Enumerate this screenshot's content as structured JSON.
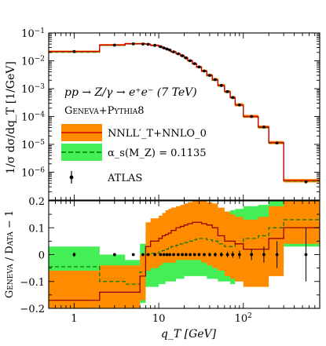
{
  "chart_data": [
    {
      "type": "line",
      "panel": "top",
      "title": "",
      "xlabel": "",
      "ylabel": "1/σ dσ/dq_T [1/GeV]",
      "xscale": "log",
      "yscale": "log",
      "xlim": [
        0.5,
        800
      ],
      "ylim": [
        1e-07,
        0.1
      ],
      "yticks": [
        {
          "v": 1e-06,
          "mant": "10",
          "exp": "−6"
        },
        {
          "v": 1e-05,
          "mant": "10",
          "exp": "−5"
        },
        {
          "v": 0.0001,
          "mant": "10",
          "exp": "−4"
        },
        {
          "v": 0.001,
          "mant": "10",
          "exp": "−3"
        },
        {
          "v": 0.01,
          "mant": "10",
          "exp": "−2"
        },
        {
          "v": 0.1,
          "mant": "10",
          "exp": "−1"
        }
      ],
      "annotations": {
        "process": "pp → Z/γ → e⁺e⁻ (7 TeV)",
        "generator": "Geneva+Pythia8"
      },
      "bin_edges": [
        0.5,
        2,
        4,
        6,
        7,
        8,
        10,
        11,
        12,
        13,
        14,
        16,
        18,
        20,
        22,
        25,
        28,
        32,
        37,
        43,
        50,
        60,
        70,
        80,
        100,
        150,
        200,
        300,
        800
      ],
      "series": [
        {
          "name": "NNLL′_T+NNLO_0",
          "color": "#cc0000",
          "band_color": "#ff8c00",
          "values": [
            0.0215,
            0.037,
            0.041,
            0.041,
            0.0395,
            0.036,
            0.0325,
            0.029,
            0.0265,
            0.0245,
            0.021,
            0.018,
            0.0153,
            0.0128,
            0.0101,
            0.0079,
            0.006,
            0.0043,
            0.003,
            0.0021,
            0.0013,
            0.00078,
            0.00048,
            0.00026,
            0.0001,
            4.2e-05,
            1.15e-05,
            5e-07
          ],
          "band_lo": [
            0.0195,
            0.034,
            0.0385,
            0.0385,
            0.037,
            0.0335,
            0.03,
            0.027,
            0.0245,
            0.0225,
            0.0193,
            0.0165,
            0.014,
            0.0117,
            0.0092,
            0.0072,
            0.0055,
            0.0039,
            0.0027,
            0.0019,
            0.00118,
            0.0007,
            0.00043,
            0.00023,
            8.9e-05,
            3.7e-05,
            1.02e-05,
            4.3e-07
          ],
          "band_hi": [
            0.0235,
            0.04,
            0.044,
            0.044,
            0.0425,
            0.0388,
            0.035,
            0.0312,
            0.0285,
            0.0265,
            0.0228,
            0.0196,
            0.0167,
            0.014,
            0.011,
            0.0087,
            0.0066,
            0.0048,
            0.0034,
            0.0024,
            0.00147,
            0.00088,
            0.00054,
            0.0003,
            0.000115,
            4.8e-05,
            1.32e-05,
            5.7e-07
          ]
        },
        {
          "name": "α_s(M_Z) = 0.1135",
          "color": "#00aa00",
          "band_color": "#44ee55",
          "values": [
            0.0205,
            0.036,
            0.0405,
            0.0405,
            0.039,
            0.0355,
            0.032,
            0.0287,
            0.0262,
            0.0242,
            0.0208,
            0.0178,
            0.0151,
            0.0127,
            0.01,
            0.0078,
            0.0059,
            0.0042,
            0.0029,
            0.002,
            0.00126,
            0.00075,
            0.00046,
            0.00025,
            9.7e-05,
            4e-05,
            1.1e-05,
            4.8e-07
          ]
        },
        {
          "name": "ATLAS",
          "color": "#000000",
          "x": [
            1,
            3,
            5,
            6.5,
            7.5,
            9,
            10.5,
            11.5,
            12.5,
            13.5,
            15,
            17,
            19,
            21,
            23.5,
            26.5,
            30,
            34.5,
            40,
            46.5,
            55,
            65,
            75,
            90,
            125,
            175,
            250,
            550
          ],
          "values": [
            0.0215,
            0.0365,
            0.0405,
            0.04,
            0.039,
            0.0358,
            0.0322,
            0.0289,
            0.0264,
            0.0244,
            0.0209,
            0.0179,
            0.0152,
            0.0127,
            0.0101,
            0.0079,
            0.006,
            0.0043,
            0.003,
            0.0021,
            0.0013,
            0.00078,
            0.00048,
            0.00026,
            0.0001,
            4.2e-05,
            1.12e-05,
            4.5e-07
          ]
        }
      ],
      "legend_position": "lower-left"
    },
    {
      "type": "line",
      "panel": "bottom",
      "title": "",
      "xlabel": "q_T [GeV]",
      "ylabel": "Geneva / Data − 1",
      "xscale": "log",
      "yscale": "linear",
      "xlim": [
        0.5,
        800
      ],
      "ylim": [
        -0.2,
        0.2
      ],
      "yticks": [
        {
          "v": -0.2,
          "label": "−0.2"
        },
        {
          "v": -0.1,
          "label": "−0.1"
        },
        {
          "v": 0,
          "label": "0"
        },
        {
          "v": 0.1,
          "label": "0.1"
        },
        {
          "v": 0.2,
          "label": "0.2"
        }
      ],
      "xticks": [
        {
          "v": 1,
          "mant": "1",
          "exp": ""
        },
        {
          "v": 10,
          "mant": "10",
          "exp": ""
        },
        {
          "v": 100,
          "mant": "10",
          "exp": "2"
        }
      ],
      "bin_edges": [
        0.5,
        2,
        4,
        6,
        7,
        8,
        10,
        11,
        12,
        13,
        14,
        16,
        18,
        20,
        22,
        25,
        28,
        32,
        37,
        43,
        50,
        60,
        70,
        80,
        100,
        150,
        200,
        300,
        800
      ],
      "series": [
        {
          "name": "NNLL′_T+NNLO_0",
          "color": "#990000",
          "band_color": "#ff8c00",
          "values": [
            -0.17,
            -0.14,
            -0.14,
            -0.08,
            0.03,
            0.05,
            0.06,
            0.07,
            0.075,
            0.08,
            0.09,
            0.1,
            0.105,
            0.11,
            0.115,
            0.12,
            0.12,
            0.115,
            0.11,
            0.1,
            0.07,
            0.05,
            0.05,
            0.04,
            0.02,
            0.02,
            0.06,
            0.1
          ],
          "band_lo": [
            -0.2,
            -0.2,
            -0.2,
            -0.17,
            -0.06,
            -0.05,
            -0.04,
            -0.03,
            -0.03,
            -0.03,
            -0.03,
            -0.02,
            -0.02,
            -0.02,
            -0.02,
            -0.02,
            -0.02,
            -0.03,
            -0.04,
            -0.05,
            -0.06,
            -0.08,
            -0.09,
            -0.1,
            -0.12,
            -0.12,
            -0.08,
            0.04
          ],
          "band_hi": [
            -0.06,
            -0.04,
            -0.04,
            0.0,
            0.12,
            0.135,
            0.145,
            0.155,
            0.165,
            0.17,
            0.175,
            0.18,
            0.185,
            0.19,
            0.195,
            0.2,
            0.2,
            0.2,
            0.195,
            0.19,
            0.175,
            0.16,
            0.15,
            0.14,
            0.13,
            0.14,
            0.18,
            0.2
          ]
        },
        {
          "name": "α_s(M_Z) = 0.1135",
          "color": "#007700",
          "band_color": "#44ee55",
          "values": [
            -0.045,
            -0.1,
            -0.11,
            -0.065,
            0.0,
            0.005,
            0.01,
            0.015,
            0.02,
            0.025,
            0.03,
            0.035,
            0.04,
            0.045,
            0.05,
            0.055,
            0.06,
            0.06,
            0.055,
            0.05,
            0.04,
            0.03,
            0.03,
            0.04,
            0.06,
            0.07,
            0.1,
            0.13
          ],
          "band_lo": [
            -0.2,
            -0.2,
            -0.2,
            -0.18,
            -0.12,
            -0.12,
            -0.11,
            -0.11,
            -0.1,
            -0.1,
            -0.1,
            -0.09,
            -0.09,
            -0.08,
            -0.08,
            -0.08,
            -0.08,
            -0.08,
            -0.09,
            -0.09,
            -0.1,
            -0.1,
            -0.11,
            -0.1,
            -0.08,
            -0.06,
            -0.03,
            0.03
          ],
          "band_hi": [
            0.03,
            0.0,
            -0.02,
            0.04,
            0.08,
            0.085,
            0.09,
            0.095,
            0.1,
            0.1,
            0.105,
            0.11,
            0.115,
            0.12,
            0.125,
            0.13,
            0.135,
            0.14,
            0.145,
            0.15,
            0.155,
            0.16,
            0.165,
            0.17,
            0.18,
            0.185,
            0.2,
            0.2
          ]
        },
        {
          "name": "ATLAS",
          "color": "#000000",
          "x": [
            1,
            3,
            5,
            6.5,
            7.5,
            9,
            10.5,
            11.5,
            12.5,
            13.5,
            15,
            17,
            19,
            21,
            23.5,
            26.5,
            30,
            34.5,
            40,
            46.5,
            55,
            65,
            75,
            90,
            125,
            175,
            250,
            550
          ],
          "values": [
            0,
            0,
            0,
            0,
            0,
            0,
            0,
            0,
            0,
            0,
            0,
            0,
            0,
            0,
            0,
            0,
            0,
            0,
            0,
            0,
            0,
            0,
            0,
            0,
            0,
            0,
            0,
            0
          ],
          "errors": [
            0.008,
            0.006,
            0.005,
            0.005,
            0.005,
            0.005,
            0.005,
            0.005,
            0.005,
            0.005,
            0.005,
            0.005,
            0.005,
            0.005,
            0.005,
            0.005,
            0.006,
            0.006,
            0.007,
            0.008,
            0.009,
            0.01,
            0.012,
            0.015,
            0.02,
            0.03,
            0.05,
            0.1
          ]
        }
      ]
    }
  ]
}
